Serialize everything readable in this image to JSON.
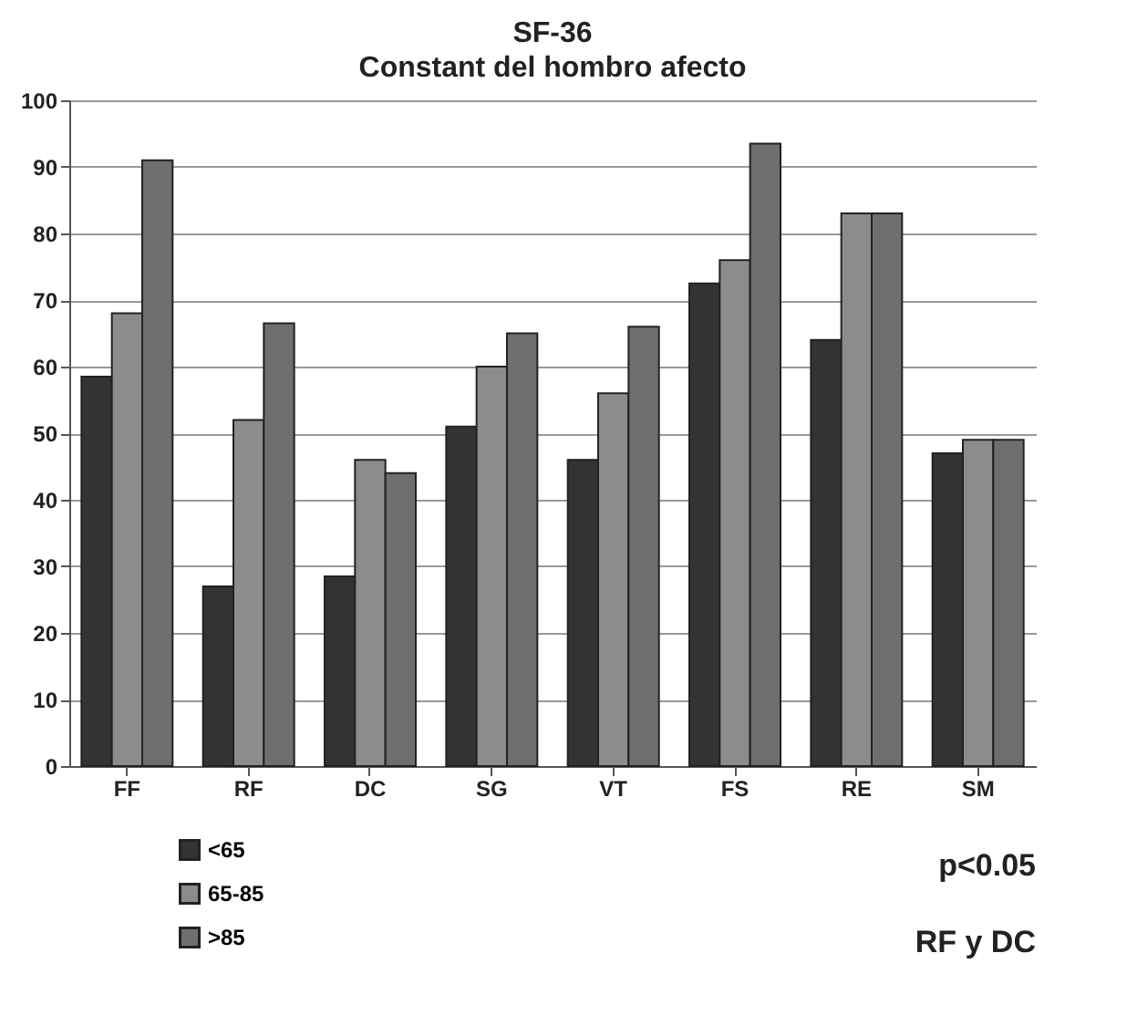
{
  "chart_data": {
    "type": "bar",
    "title": "SF-36",
    "subtitle": "Constant del hombro afecto",
    "categories": [
      "FF",
      "RF",
      "DC",
      "SG",
      "VT",
      "FS",
      "RE",
      "SM"
    ],
    "series": [
      {
        "name": "<65",
        "color": "#333333",
        "values": [
          58.5,
          27,
          28.5,
          51,
          46,
          72.5,
          64,
          47
        ]
      },
      {
        "name": "65-85",
        "color": "#8c8c8c",
        "values": [
          68,
          52,
          46,
          60,
          56,
          76,
          83,
          49
        ]
      },
      {
        "name": ">85",
        "color": "#6e6e6e",
        "values": [
          91,
          66.5,
          44,
          65,
          66,
          93.5,
          83,
          49
        ]
      }
    ],
    "ylim": [
      0,
      100
    ],
    "yticks": [
      0,
      10,
      20,
      30,
      40,
      50,
      60,
      70,
      80,
      90,
      100
    ],
    "grid": "y",
    "legend": "bottom left",
    "annotations": [
      "p<0.05",
      "RF y DC"
    ]
  }
}
